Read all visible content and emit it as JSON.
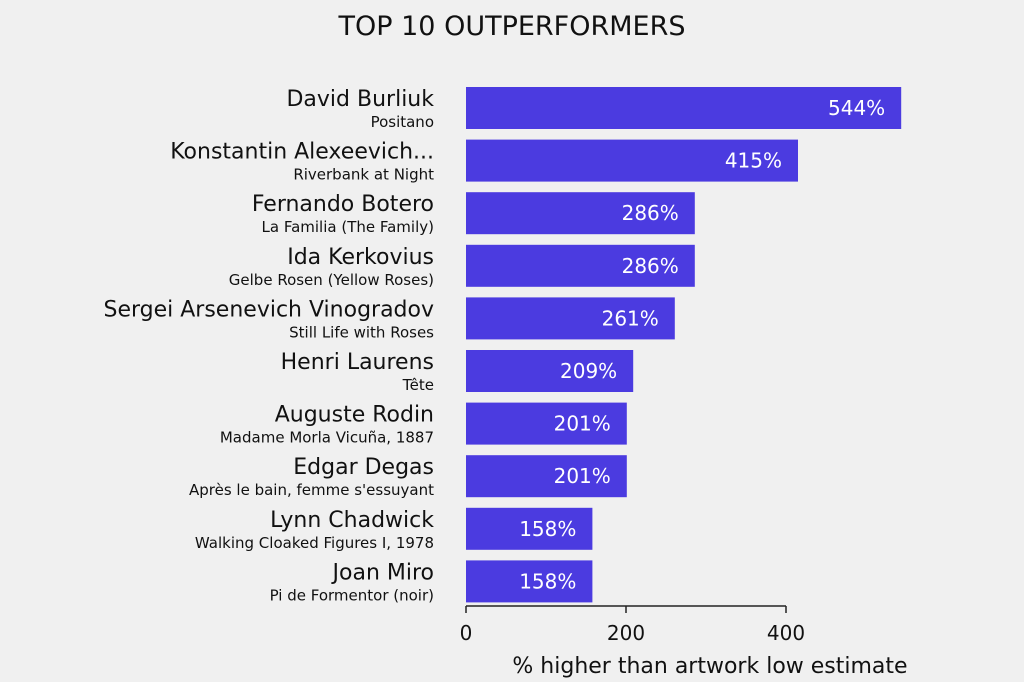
{
  "chart_data": {
    "type": "bar",
    "orientation": "horizontal",
    "title": "TOP 10 OUTPERFORMERS",
    "xlabel": "% higher than artwork low estimate",
    "ylabel": "",
    "xlim": [
      0,
      540
    ],
    "xticks": [
      0,
      200,
      400
    ],
    "xtick_labels": [
      "0",
      "200",
      "400"
    ],
    "grid": false,
    "legend": "none",
    "bar_color": "#4b3be0",
    "label_color": "#ffffff",
    "categories": [
      {
        "artist": "David Burliuk",
        "work": "Positano"
      },
      {
        "artist": "Konstantin Alexeevich...",
        "work": "Riverbank at Night"
      },
      {
        "artist": "Fernando Botero",
        "work": "La Familia (The Family)"
      },
      {
        "artist": "Ida Kerkovius",
        "work": "Gelbe Rosen (Yellow Roses)"
      },
      {
        "artist": "Sergei Arsenevich Vinogradov",
        "work": "Still Life with Roses"
      },
      {
        "artist": "Henri Laurens",
        "work": "Tête"
      },
      {
        "artist": "Auguste Rodin",
        "work": "Madame Morla Vicuña, 1887"
      },
      {
        "artist": "Edgar Degas",
        "work": "Après le bain, femme s'essuyant"
      },
      {
        "artist": "Lynn Chadwick",
        "work": "Walking Cloaked Figures I, 1978"
      },
      {
        "artist": "Joan Miro",
        "work": "Pi de Formentor (noir)"
      }
    ],
    "values": [
      544,
      415,
      286,
      286,
      261,
      209,
      201,
      201,
      158,
      158
    ],
    "value_labels": [
      "544%",
      "415%",
      "286%",
      "286%",
      "261%",
      "209%",
      "201%",
      "201%",
      "158%",
      "158%"
    ]
  }
}
